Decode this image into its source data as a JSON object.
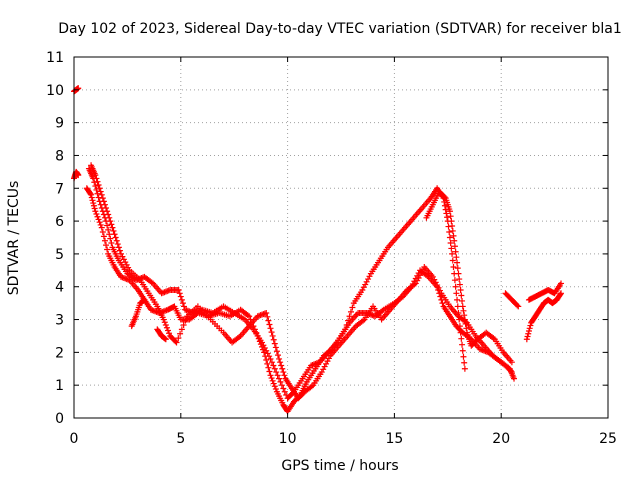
{
  "chart_data": {
    "type": "scatter",
    "title": "Day 102 of 2023, Sidereal Day-to-day VTEC variation (SDTVAR) for receiver bla1",
    "xlabel": "GPS time / hours",
    "ylabel": "SDTVAR / TECUs",
    "xlim": [
      0,
      25
    ],
    "ylim": [
      0,
      11
    ],
    "xticks": [
      0,
      5,
      10,
      15,
      20,
      25
    ],
    "yticks": [
      0,
      1,
      2,
      3,
      4,
      5,
      6,
      7,
      8,
      9,
      10,
      11
    ],
    "grid": true,
    "marker": "+",
    "series": [
      {
        "name": "SDTVAR",
        "color": "#ff0000",
        "tracks": [
          [
            [
              0.0,
              7.3
            ],
            [
              0.1,
              7.5
            ],
            [
              0.2,
              7.4
            ]
          ],
          [
            [
              0.0,
              9.95
            ],
            [
              0.1,
              10.0
            ],
            [
              0.2,
              10.05
            ]
          ],
          [
            [
              0.6,
              7.0
            ],
            [
              0.8,
              6.8
            ],
            [
              1.0,
              6.3
            ],
            [
              1.3,
              5.8
            ],
            [
              1.6,
              5.0
            ],
            [
              1.9,
              4.6
            ],
            [
              2.2,
              4.3
            ],
            [
              2.6,
              4.2
            ],
            [
              3.0,
              3.9
            ],
            [
              3.3,
              3.6
            ],
            [
              3.6,
              3.3
            ],
            [
              4.0,
              3.2
            ],
            [
              4.4,
              3.3
            ],
            [
              4.7,
              3.4
            ],
            [
              5.0,
              3.0
            ],
            [
              5.4,
              3.0
            ],
            [
              5.8,
              3.2
            ],
            [
              6.3,
              3.1
            ],
            [
              6.8,
              3.2
            ],
            [
              7.3,
              3.1
            ],
            [
              7.8,
              3.3
            ],
            [
              8.2,
              3.1
            ],
            [
              8.6,
              2.5
            ],
            [
              8.9,
              2.0
            ],
            [
              9.2,
              1.3
            ],
            [
              9.5,
              0.8
            ],
            [
              9.8,
              0.4
            ],
            [
              10.0,
              0.2
            ],
            [
              10.3,
              0.5
            ],
            [
              10.6,
              0.7
            ],
            [
              10.9,
              1.1
            ],
            [
              11.3,
              1.5
            ],
            [
              11.7,
              1.9
            ],
            [
              12.1,
              2.1
            ],
            [
              12.5,
              2.5
            ],
            [
              12.9,
              2.9
            ],
            [
              13.3,
              3.2
            ],
            [
              13.7,
              3.2
            ],
            [
              14.1,
              3.1
            ],
            [
              14.5,
              3.3
            ],
            [
              15.0,
              3.5
            ],
            [
              15.4,
              3.7
            ],
            [
              15.8,
              4.0
            ],
            [
              16.2,
              4.5
            ],
            [
              16.6,
              4.3
            ],
            [
              17.0,
              4.0
            ],
            [
              17.3,
              3.4
            ],
            [
              17.6,
              3.1
            ],
            [
              17.9,
              2.8
            ],
            [
              18.2,
              2.6
            ],
            [
              18.6,
              2.4
            ],
            [
              19.0,
              2.1
            ],
            [
              19.4,
              2.0
            ],
            [
              19.8,
              1.8
            ],
            [
              20.2,
              1.6
            ],
            [
              20.5,
              1.4
            ]
          ],
          [
            [
              0.7,
              7.6
            ],
            [
              0.9,
              7.3
            ],
            [
              1.2,
              6.6
            ],
            [
              1.5,
              6.0
            ],
            [
              1.8,
              5.2
            ],
            [
              2.1,
              4.8
            ],
            [
              2.5,
              4.4
            ],
            [
              2.9,
              4.2
            ],
            [
              3.3,
              4.3
            ],
            [
              3.7,
              4.1
            ],
            [
              4.1,
              3.8
            ],
            [
              4.5,
              3.9
            ],
            [
              4.9,
              3.9
            ],
            [
              5.2,
              3.3
            ],
            [
              5.6,
              3.2
            ],
            [
              6.0,
              3.3
            ],
            [
              6.5,
              3.2
            ],
            [
              7.0,
              3.4
            ],
            [
              7.5,
              3.2
            ],
            [
              8.0,
              3.0
            ],
            [
              8.4,
              2.7
            ],
            [
              8.8,
              2.3
            ],
            [
              9.2,
              1.8
            ],
            [
              9.6,
              1.2
            ],
            [
              10.0,
              0.6
            ],
            [
              10.3,
              0.8
            ],
            [
              10.7,
              1.2
            ],
            [
              11.1,
              1.6
            ],
            [
              11.5,
              1.7
            ],
            [
              11.9,
              2.0
            ],
            [
              12.3,
              2.3
            ],
            [
              12.7,
              2.7
            ],
            [
              13.1,
              3.5
            ],
            [
              13.5,
              3.9
            ],
            [
              13.9,
              4.4
            ],
            [
              14.3,
              4.8
            ],
            [
              14.7,
              5.2
            ],
            [
              15.1,
              5.5
            ],
            [
              15.5,
              5.8
            ],
            [
              15.9,
              6.1
            ],
            [
              16.3,
              6.4
            ],
            [
              16.7,
              6.7
            ],
            [
              17.0,
              7.0
            ],
            [
              17.3,
              6.7
            ],
            [
              17.5,
              6.0
            ],
            [
              17.7,
              5.0
            ],
            [
              17.9,
              3.8
            ],
            [
              18.1,
              2.6
            ],
            [
              18.3,
              1.5
            ]
          ],
          [
            [
              0.8,
              7.7
            ],
            [
              1.0,
              7.4
            ],
            [
              1.3,
              6.8
            ],
            [
              1.6,
              6.2
            ],
            [
              1.9,
              5.6
            ],
            [
              2.2,
              5.0
            ],
            [
              2.6,
              4.5
            ],
            [
              3.1,
              4.2
            ],
            [
              3.5,
              3.8
            ],
            [
              3.9,
              3.4
            ],
            [
              4.2,
              3.0
            ],
            [
              4.5,
              2.5
            ],
            [
              4.8,
              2.3
            ],
            [
              5.3,
              3.1
            ],
            [
              5.8,
              3.4
            ],
            [
              6.4,
              3.0
            ],
            [
              7.0,
              2.6
            ],
            [
              7.4,
              2.3
            ],
            [
              7.8,
              2.5
            ],
            [
              8.2,
              2.8
            ],
            [
              8.6,
              3.1
            ],
            [
              9.0,
              3.2
            ],
            [
              9.3,
              2.5
            ],
            [
              9.6,
              1.8
            ],
            [
              9.9,
              1.2
            ],
            [
              10.2,
              0.9
            ],
            [
              10.5,
              0.6
            ],
            [
              10.8,
              0.8
            ],
            [
              11.2,
              1.0
            ],
            [
              11.6,
              1.4
            ],
            [
              12.0,
              1.9
            ],
            [
              12.4,
              2.2
            ],
            [
              12.8,
              2.5
            ],
            [
              13.2,
              2.8
            ],
            [
              13.6,
              3.0
            ],
            [
              14.0,
              3.4
            ],
            [
              14.4,
              3.0
            ],
            [
              14.8,
              3.3
            ],
            [
              15.2,
              3.6
            ],
            [
              15.6,
              3.9
            ],
            [
              16.0,
              4.1
            ],
            [
              16.4,
              4.6
            ],
            [
              16.8,
              4.3
            ],
            [
              17.2,
              3.8
            ],
            [
              17.6,
              3.4
            ],
            [
              18.0,
              3.1
            ],
            [
              18.4,
              2.9
            ],
            [
              18.8,
              2.5
            ],
            [
              19.2,
              2.2
            ],
            [
              19.6,
              1.9
            ],
            [
              20.0,
              1.7
            ],
            [
              20.4,
              1.5
            ],
            [
              20.6,
              1.2
            ]
          ],
          [
            [
              2.7,
              2.8
            ],
            [
              2.9,
              3.1
            ],
            [
              3.1,
              3.5
            ],
            [
              3.3,
              3.6
            ]
          ],
          [
            [
              3.9,
              2.7
            ],
            [
              4.1,
              2.5
            ],
            [
              4.3,
              2.4
            ]
          ],
          [
            [
              16.5,
              6.1
            ],
            [
              16.8,
              6.5
            ],
            [
              17.1,
              6.9
            ],
            [
              17.4,
              6.7
            ],
            [
              17.6,
              6.3
            ],
            [
              17.8,
              5.4
            ],
            [
              18.0,
              4.4
            ],
            [
              18.2,
              3.4
            ],
            [
              18.4,
              2.6
            ],
            [
              18.6,
              2.2
            ],
            [
              18.9,
              2.4
            ],
            [
              19.3,
              2.6
            ],
            [
              19.7,
              2.4
            ],
            [
              20.1,
              2.0
            ],
            [
              20.5,
              1.7
            ]
          ],
          [
            [
              20.2,
              3.8
            ],
            [
              20.5,
              3.6
            ],
            [
              20.8,
              3.4
            ]
          ],
          [
            [
              21.2,
              2.4
            ],
            [
              21.4,
              2.9
            ],
            [
              21.6,
              3.1
            ],
            [
              21.8,
              3.3
            ],
            [
              22.0,
              3.5
            ],
            [
              22.2,
              3.6
            ],
            [
              22.4,
              3.5
            ],
            [
              22.6,
              3.6
            ],
            [
              22.8,
              3.8
            ]
          ],
          [
            [
              21.3,
              3.6
            ],
            [
              21.6,
              3.7
            ],
            [
              21.9,
              3.8
            ],
            [
              22.2,
              3.9
            ],
            [
              22.5,
              3.8
            ],
            [
              22.8,
              4.1
            ]
          ]
        ]
      }
    ]
  }
}
